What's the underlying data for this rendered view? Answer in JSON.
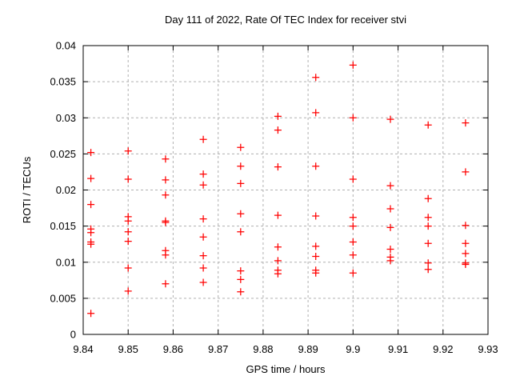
{
  "chart": {
    "title": "Day 111 of 2022, Rate Of TEC Index for receiver stvi",
    "x_axis": {
      "label": "GPS time / hours",
      "ticks": [
        9.84,
        9.85,
        9.86,
        9.87,
        9.88,
        9.89,
        9.9,
        9.91,
        9.92,
        9.93
      ],
      "tick_labels": [
        "9.84",
        "9.85",
        "9.86",
        "9.87",
        "9.88",
        "9.89",
        "9.9",
        "9.91",
        "9.92",
        "9.93"
      ]
    },
    "y_axis": {
      "label": "ROTI / TECUs",
      "ticks": [
        0,
        0.005,
        0.01,
        0.015,
        0.02,
        0.025,
        0.03,
        0.035,
        0.04
      ],
      "tick_labels": [
        "0",
        "0.005",
        "0.01",
        "0.015",
        "0.02",
        "0.025",
        "0.03",
        "0.035",
        "0.04"
      ]
    },
    "colors": {
      "marker": "#ff0000",
      "grid": "#b0b0b0",
      "border": "#000000",
      "background": "#ffffff",
      "text": "#000000"
    }
  },
  "chart_data": {
    "type": "scatter",
    "title": "Day 111 of 2022, Rate Of TEC Index for receiver stvi",
    "xlabel": "GPS time / hours",
    "ylabel": "ROTI / TECUs",
    "xlim": [
      9.84,
      9.93
    ],
    "ylim": [
      0,
      0.04
    ],
    "grid": true,
    "legend": "none",
    "marker": "plus",
    "series": [
      {
        "name": "ROTI",
        "color": "#ff0000",
        "points": [
          [
            9.8417,
            0.0252
          ],
          [
            9.8417,
            0.0216
          ],
          [
            9.8417,
            0.018
          ],
          [
            9.8417,
            0.0146
          ],
          [
            9.8417,
            0.0141
          ],
          [
            9.8417,
            0.0128
          ],
          [
            9.8417,
            0.0125
          ],
          [
            9.8417,
            0.0029
          ],
          [
            9.85,
            0.0254
          ],
          [
            9.85,
            0.0215
          ],
          [
            9.85,
            0.0163
          ],
          [
            9.85,
            0.0157
          ],
          [
            9.85,
            0.0142
          ],
          [
            9.85,
            0.0129
          ],
          [
            9.85,
            0.0092
          ],
          [
            9.85,
            0.006
          ],
          [
            9.8583,
            0.0243
          ],
          [
            9.8583,
            0.0214
          ],
          [
            9.8583,
            0.0193
          ],
          [
            9.8583,
            0.0157
          ],
          [
            9.8583,
            0.0155
          ],
          [
            9.8583,
            0.0116
          ],
          [
            9.8583,
            0.011
          ],
          [
            9.8583,
            0.007
          ],
          [
            9.8667,
            0.027
          ],
          [
            9.8667,
            0.0222
          ],
          [
            9.8667,
            0.0207
          ],
          [
            9.8667,
            0.016
          ],
          [
            9.8667,
            0.0135
          ],
          [
            9.8667,
            0.0109
          ],
          [
            9.8667,
            0.0092
          ],
          [
            9.8667,
            0.0072
          ],
          [
            9.875,
            0.0259
          ],
          [
            9.875,
            0.0233
          ],
          [
            9.875,
            0.0209
          ],
          [
            9.875,
            0.0167
          ],
          [
            9.875,
            0.0142
          ],
          [
            9.875,
            0.0088
          ],
          [
            9.875,
            0.0076
          ],
          [
            9.875,
            0.0059
          ],
          [
            9.8833,
            0.0302
          ],
          [
            9.8833,
            0.0283
          ],
          [
            9.8833,
            0.0232
          ],
          [
            9.8833,
            0.0165
          ],
          [
            9.8833,
            0.0121
          ],
          [
            9.8833,
            0.0102
          ],
          [
            9.8833,
            0.0089
          ],
          [
            9.8833,
            0.0084
          ],
          [
            9.8917,
            0.0356
          ],
          [
            9.8917,
            0.0307
          ],
          [
            9.8917,
            0.0233
          ],
          [
            9.8917,
            0.0164
          ],
          [
            9.8917,
            0.0122
          ],
          [
            9.8917,
            0.0108
          ],
          [
            9.8917,
            0.0089
          ],
          [
            9.8917,
            0.0085
          ],
          [
            9.9,
            0.0373
          ],
          [
            9.9,
            0.03
          ],
          [
            9.9,
            0.0215
          ],
          [
            9.9,
            0.0162
          ],
          [
            9.9,
            0.015
          ],
          [
            9.9,
            0.0128
          ],
          [
            9.9,
            0.011
          ],
          [
            9.9,
            0.0085
          ],
          [
            9.9083,
            0.0298
          ],
          [
            9.9083,
            0.0206
          ],
          [
            9.9083,
            0.0174
          ],
          [
            9.9083,
            0.0148
          ],
          [
            9.9083,
            0.0118
          ],
          [
            9.9083,
            0.0107
          ],
          [
            9.9083,
            0.0102
          ],
          [
            9.9167,
            0.029
          ],
          [
            9.9167,
            0.0188
          ],
          [
            9.9167,
            0.0162
          ],
          [
            9.9167,
            0.015
          ],
          [
            9.9167,
            0.0126
          ],
          [
            9.9167,
            0.0099
          ],
          [
            9.9167,
            0.009
          ],
          [
            9.925,
            0.0293
          ],
          [
            9.925,
            0.0225
          ],
          [
            9.925,
            0.0151
          ],
          [
            9.925,
            0.0126
          ],
          [
            9.925,
            0.0112
          ],
          [
            9.925,
            0.0099
          ],
          [
            9.925,
            0.0097
          ]
        ]
      }
    ]
  }
}
